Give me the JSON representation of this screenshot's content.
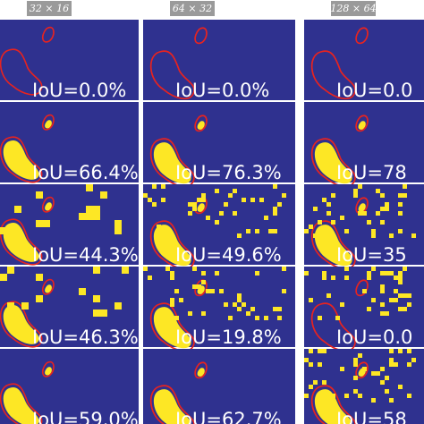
{
  "headers": [
    "32 × 16",
    "64 × 32",
    "128 × 64"
  ],
  "rows": [
    [
      "IoU=0.0%",
      "IoU=0.0%",
      "IoU=0.0"
    ],
    [
      "IoU=66.4%",
      "IoU=76.3%",
      "IoU=78"
    ],
    [
      "IoU=44.3%",
      "IoU=49.6%",
      "IoU=35"
    ],
    [
      "IoU=46.3%",
      "IoU=19.8%",
      "IoU=0.0"
    ],
    [
      "IoU=59.0%",
      "IoU=62.7%",
      "IoU=58"
    ]
  ]
}
